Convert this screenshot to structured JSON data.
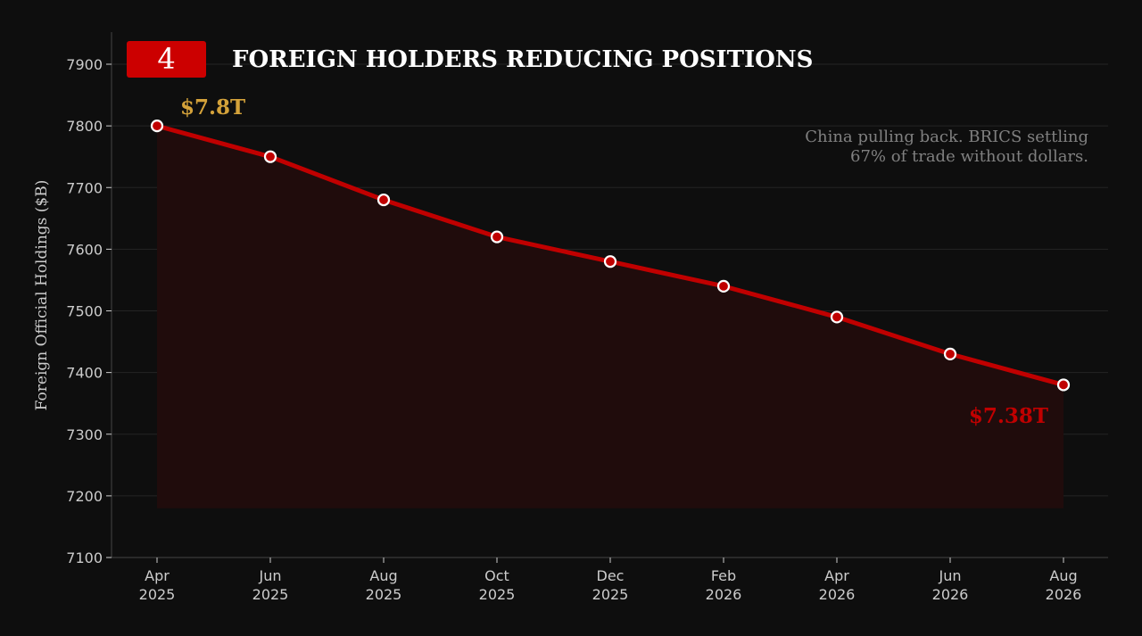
{
  "badge": {
    "number": "4",
    "color": "#cc0000"
  },
  "title": "FOREIGN HOLDERS REDUCING POSITIONS",
  "annotation": {
    "lines": [
      "China pulling back. BRICS settling",
      "67% of trade without dollars."
    ]
  },
  "start_label": {
    "text": "$7.8T",
    "color": "#d4a23a"
  },
  "end_label": {
    "text": "$7.38T",
    "color": "#c00000"
  },
  "colors": {
    "background": "#0e0e0e",
    "line": "#c00000",
    "fill": "#200c0c",
    "marker_face": "#ffffff",
    "text": "#cccccc"
  },
  "chart_data": {
    "type": "line",
    "title": "FOREIGN HOLDERS REDUCING POSITIONS",
    "xlabel": "",
    "ylabel": "Foreign Official Holdings ($B)",
    "x": [
      "Apr 2025",
      "Jun 2025",
      "Aug 2025",
      "Oct 2025",
      "Dec 2025",
      "Feb 2026",
      "Apr 2026",
      "Jun 2026",
      "Aug 2026"
    ],
    "x_ticks": [
      [
        "Apr",
        "2025"
      ],
      [
        "Jun",
        "2025"
      ],
      [
        "Aug",
        "2025"
      ],
      [
        "Oct",
        "2025"
      ],
      [
        "Dec",
        "2025"
      ],
      [
        "Feb",
        "2026"
      ],
      [
        "Apr",
        "2026"
      ],
      [
        "Jun",
        "2026"
      ],
      [
        "Aug",
        "2026"
      ]
    ],
    "values": [
      7800,
      7750,
      7680,
      7620,
      7580,
      7540,
      7490,
      7430,
      7380
    ],
    "ylim": [
      7100,
      7950
    ],
    "yticks": [
      7100,
      7200,
      7300,
      7400,
      7500,
      7600,
      7700,
      7800,
      7900
    ],
    "area_floor": 7180,
    "grid": true,
    "legend": "none"
  }
}
